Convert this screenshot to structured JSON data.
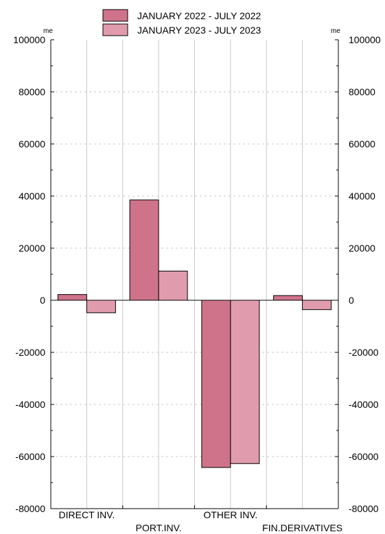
{
  "chart_data": {
    "type": "bar",
    "categories": [
      "DIRECT INV.",
      "PORT.INV.",
      "OTHER INV.",
      "FIN.DERIVATIVES"
    ],
    "series": [
      {
        "name": "JANUARY 2022 - JULY 2022",
        "color": "#cf738b",
        "values": [
          2200,
          38500,
          -64200,
          1800
        ]
      },
      {
        "name": "JANUARY 2023 - JULY 2023",
        "color": "#e09cad",
        "values": [
          -4800,
          11200,
          -62700,
          -3600
        ]
      }
    ],
    "unit_left": "me",
    "unit_right": "me",
    "ylim": [
      -80000,
      100000
    ],
    "yticks": [
      -80000,
      -60000,
      -40000,
      -20000,
      0,
      20000,
      40000,
      60000,
      80000,
      100000
    ],
    "grid": "vertical dashed",
    "legend_position": "top-center"
  }
}
